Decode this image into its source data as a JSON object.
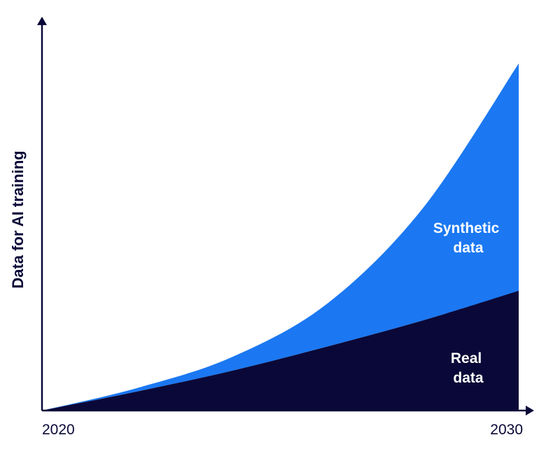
{
  "chart_data": {
    "type": "area",
    "stacked": true,
    "x": [
      2020,
      2022,
      2024,
      2026,
      2028,
      2030
    ],
    "series": [
      {
        "name": "Real data",
        "values": [
          0,
          11,
          23,
          37,
          52,
          69
        ]
      },
      {
        "name": "Synthetic data",
        "values": [
          0,
          2,
          8,
          25,
          65,
          131
        ]
      }
    ],
    "ylabel": "Data for AI training",
    "xlabel": "",
    "xticks": [
      "2020",
      "2030"
    ],
    "xlim": [
      2020,
      2030
    ],
    "ylim": [
      0,
      210
    ],
    "ymax_arrow": 227,
    "labels": {
      "synthetic": [
        "Synthetic",
        "data"
      ],
      "real": [
        "Real",
        "data"
      ]
    },
    "colors": {
      "real": "#0a0838",
      "synthetic": "#1b78f2",
      "axis": "#0a0838",
      "label_text": "#ffffff",
      "text": "#0a0838"
    },
    "y_axis_visible": true,
    "grid": false
  }
}
